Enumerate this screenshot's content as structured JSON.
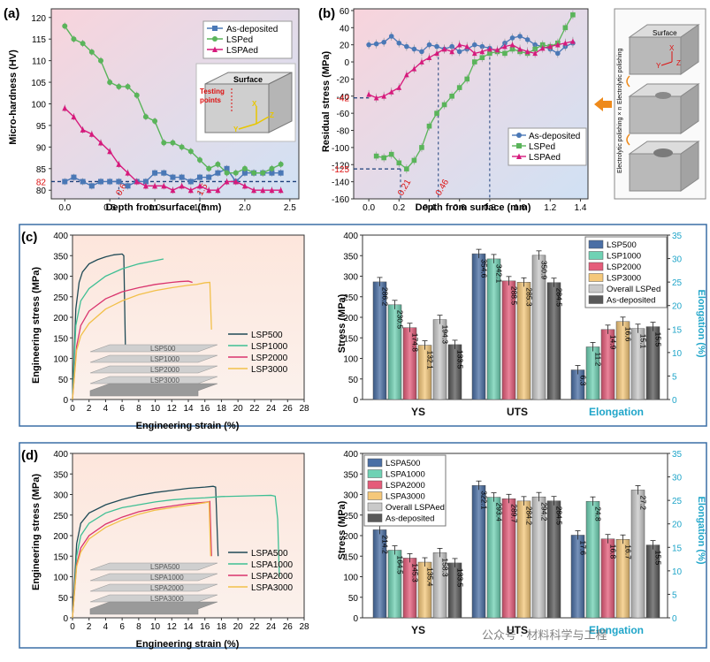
{
  "colors": {
    "blue": "#4a78b6",
    "green": "#5ab45a",
    "magenta": "#d61a7c",
    "pink_bg": "#f7d5dd",
    "blue_bg": "#d2e2f4",
    "orange": "#ee8a1b",
    "border": "#3a6ea5",
    "cyan_label": "#1fa5c9"
  },
  "panel_a": {
    "tag": "(a)",
    "xlabel": "Depth from surface (mm)",
    "ylabel": "Micro-hardness (HV)",
    "x_ticks": [
      "0.0",
      "0.5",
      "1.0",
      "1.5",
      "2.0",
      "2.5"
    ],
    "y_ticks": [
      "80",
      "85",
      "90",
      "95",
      "100",
      "105",
      "110",
      "115",
      "120"
    ],
    "ref_label": "82",
    "mark1": "0.6",
    "mark2": "1.5",
    "inset": {
      "surface": "Surface",
      "testing": "Testing",
      "points": "points",
      "x": "X",
      "y": "Y",
      "z": "Z"
    },
    "legend": [
      "As-deposited",
      "LSPed",
      "LSPAed"
    ]
  },
  "panel_b": {
    "tag": "(b)",
    "xlabel": "Depth from surface (mm)",
    "ylabel": "Residual stress (MPa)",
    "x_ticks": [
      "0.0",
      "0.2",
      "0.4",
      "0.6",
      "0.8",
      "1.0",
      "1.2",
      "1.4"
    ],
    "y_ticks": [
      "60",
      "40",
      "20",
      "0",
      "-20",
      "-40",
      "-60",
      "-80",
      "-100",
      "-120",
      "-140",
      "-160"
    ],
    "ref1": "-42",
    "ref2": "-125",
    "mark1": "0.21",
    "mark2": "0.46",
    "legend": [
      "As-deposited",
      "LSPed",
      "LSPAed"
    ],
    "side": {
      "surface": "Surface",
      "ep1": "Electrolytic polishing",
      "ep2": "Electrolytic polishing × n",
      "x": "X",
      "y": "Y",
      "z": "Z"
    }
  },
  "panel_c": {
    "tag": "(c)",
    "xlabel": "Engineering strain (%)",
    "ylabel": "Engineering stress  (MPa)",
    "x_ticks": [
      "0",
      "2",
      "4",
      "6",
      "8",
      "10",
      "12",
      "14",
      "16",
      "18",
      "20",
      "22",
      "24",
      "26",
      "28"
    ],
    "y_ticks": [
      "0",
      "50",
      "100",
      "150",
      "200",
      "250",
      "300",
      "350",
      "400"
    ],
    "legend": [
      "LSP500",
      "LSP1000",
      "LSP2000",
      "LSP3000"
    ],
    "stack": [
      "LSP500",
      "LSP1000",
      "LSP2000",
      "LSP3000"
    ],
    "bar_legend": [
      "LSP500",
      "LSP1000",
      "LSP2000",
      "LSP3000",
      "Overall LSPed",
      "As-deposited"
    ],
    "bar_ylabel": "Stress  (MPa)",
    "bar_y2label": "Elongation (%)",
    "groups": [
      "YS",
      "UTS",
      "Elongation"
    ],
    "ys": [
      "286.2",
      "230.5",
      "174.8",
      "132.1",
      "194.3",
      "133.5"
    ],
    "uts": [
      "354.6",
      "342.1",
      "288.5",
      "285.3",
      "350.9",
      "284.5"
    ],
    "el": [
      "6.3",
      "11.2",
      "14.9",
      "16.6",
      "15.1",
      "15.5"
    ]
  },
  "panel_d": {
    "tag": "(d)",
    "xlabel": "Engineering strain (%)",
    "ylabel": "Engineering stress  (MPa)",
    "x_ticks": [
      "0",
      "2",
      "4",
      "6",
      "8",
      "10",
      "12",
      "14",
      "16",
      "18",
      "20",
      "22",
      "24",
      "26",
      "28"
    ],
    "y_ticks": [
      "0",
      "50",
      "100",
      "150",
      "200",
      "250",
      "300",
      "350",
      "400"
    ],
    "legend": [
      "LSPA500",
      "LSPA1000",
      "LSPA2000",
      "LSPA3000"
    ],
    "stack": [
      "LSPA500",
      "LSPA1000",
      "LSPA2000",
      "LSPA3000"
    ],
    "bar_legend": [
      "LSPA500",
      "LSPA1000",
      "LSPA2000",
      "LSPA3000",
      "Overall LSPAed",
      "As-deposited"
    ],
    "bar_ylabel": "Stress  (MPa)",
    "bar_y2label": "Elongation (%)",
    "groups": [
      "YS",
      "UTS",
      "Elongation"
    ],
    "ys": [
      "214.2",
      "164.5",
      "145.3",
      "135.4",
      "158.3",
      "133.5"
    ],
    "uts": [
      "322.1",
      "293.4",
      "289.7",
      "284.2",
      "294.2",
      "284.5"
    ],
    "el": [
      "17.6",
      "24.8",
      "16.8",
      "16.7",
      "27.2",
      "15.5"
    ]
  },
  "watermark": "公众号 · 材料科学与工程",
  "chart_data": [
    {
      "type": "line",
      "id": "a",
      "xlim": [
        -0.15,
        2.6
      ],
      "ylim": [
        78,
        122
      ],
      "series": [
        {
          "name": "As-deposited",
          "x": [
            0,
            0.1,
            0.2,
            0.3,
            0.4,
            0.5,
            0.6,
            0.7,
            0.8,
            0.9,
            1.0,
            1.1,
            1.2,
            1.3,
            1.4,
            1.5,
            1.6,
            1.7,
            1.8,
            1.9,
            2.0,
            2.1,
            2.2,
            2.3,
            2.4
          ],
          "y": [
            82,
            83,
            82,
            81,
            82,
            82,
            82,
            81,
            82,
            82,
            84,
            84,
            83,
            83,
            82,
            83,
            83,
            84,
            85,
            82,
            84,
            84,
            84,
            84,
            84
          ]
        },
        {
          "name": "LSPed",
          "x": [
            0,
            0.1,
            0.2,
            0.3,
            0.4,
            0.5,
            0.6,
            0.7,
            0.8,
            0.9,
            1.0,
            1.1,
            1.2,
            1.3,
            1.4,
            1.5,
            1.6,
            1.7,
            1.8,
            1.9,
            2.0,
            2.1,
            2.2,
            2.3,
            2.4
          ],
          "y": [
            118,
            115,
            114,
            112,
            110,
            105,
            104,
            104,
            102,
            97,
            96,
            91,
            91,
            90,
            89,
            87,
            85,
            86,
            84,
            84,
            85,
            84,
            84,
            85,
            86
          ]
        },
        {
          "name": "LSPAed",
          "x": [
            0,
            0.1,
            0.2,
            0.3,
            0.4,
            0.5,
            0.6,
            0.7,
            0.8,
            0.9,
            1.0,
            1.1,
            1.2,
            1.3,
            1.4,
            1.5,
            1.6,
            1.7,
            1.8,
            1.9,
            2.0,
            2.1,
            2.2,
            2.3,
            2.4
          ],
          "y": [
            99,
            97,
            94,
            93,
            91,
            89,
            86,
            84,
            82,
            81,
            81,
            81,
            80,
            81,
            80,
            81,
            80,
            80,
            82,
            82,
            81,
            80,
            80,
            80,
            80
          ]
        }
      ]
    },
    {
      "type": "line",
      "id": "b",
      "xlim": [
        -0.1,
        1.45
      ],
      "ylim": [
        -160,
        62
      ],
      "series": [
        {
          "name": "As-deposited",
          "x": [
            0,
            0.05,
            0.1,
            0.15,
            0.2,
            0.25,
            0.3,
            0.35,
            0.4,
            0.45,
            0.5,
            0.55,
            0.6,
            0.65,
            0.7,
            0.75,
            0.8,
            0.85,
            0.9,
            0.95,
            1.0,
            1.05,
            1.1,
            1.15,
            1.2,
            1.25,
            1.3,
            1.35
          ],
          "y": [
            20,
            21,
            23,
            30,
            22,
            18,
            15,
            12,
            20,
            18,
            15,
            18,
            12,
            15,
            20,
            18,
            16,
            12,
            22,
            28,
            30,
            26,
            20,
            18,
            15,
            10,
            18,
            22
          ]
        },
        {
          "name": "LSPed",
          "x": [
            0.05,
            0.1,
            0.15,
            0.2,
            0.25,
            0.3,
            0.35,
            0.4,
            0.45,
            0.5,
            0.55,
            0.6,
            0.65,
            0.7,
            0.75,
            0.8,
            0.85,
            0.9,
            0.95,
            1.0,
            1.05,
            1.1,
            1.15,
            1.2,
            1.25,
            1.3,
            1.35
          ],
          "y": [
            -110,
            -112,
            -108,
            -118,
            -125,
            -115,
            -100,
            -75,
            -60,
            -50,
            -40,
            -30,
            -20,
            0,
            5,
            10,
            12,
            10,
            15,
            12,
            10,
            15,
            20,
            18,
            22,
            40,
            55
          ]
        },
        {
          "name": "LSPAed",
          "x": [
            0,
            0.05,
            0.1,
            0.15,
            0.2,
            0.25,
            0.3,
            0.35,
            0.4,
            0.45,
            0.5,
            0.55,
            0.6,
            0.65,
            0.7,
            0.75,
            0.8,
            0.85,
            0.9,
            0.95,
            1.0,
            1.05,
            1.1,
            1.15,
            1.2,
            1.25,
            1.3,
            1.35
          ],
          "y": [
            -38,
            -42,
            -40,
            -35,
            -30,
            -15,
            -8,
            0,
            5,
            10,
            15,
            12,
            20,
            18,
            10,
            12,
            15,
            14,
            18,
            20,
            15,
            12,
            10,
            16,
            18,
            20,
            22,
            24
          ]
        }
      ]
    },
    {
      "type": "line",
      "id": "c-curves",
      "xlim": [
        0,
        28
      ],
      "ylim": [
        0,
        400
      ],
      "series": [
        {
          "name": "LSP500",
          "x": [
            0,
            0.4,
            0.8,
            1.2,
            2,
            3,
            4,
            5,
            6,
            6.2,
            6.4
          ],
          "y": [
            0,
            220,
            285,
            310,
            330,
            340,
            347,
            352,
            354,
            350,
            120
          ]
        },
        {
          "name": "LSP1000",
          "x": [
            0,
            0.4,
            1,
            2,
            4,
            6,
            8,
            10,
            11
          ],
          "y": [
            0,
            180,
            240,
            270,
            300,
            318,
            330,
            338,
            342
          ]
        },
        {
          "name": "LSP2000",
          "x": [
            0,
            0.5,
            1,
            2,
            4,
            6,
            8,
            10,
            12,
            13,
            14,
            14.5
          ],
          "y": [
            0,
            130,
            180,
            215,
            245,
            262,
            272,
            280,
            285,
            287,
            288,
            285
          ]
        },
        {
          "name": "LSP3000",
          "x": [
            0,
            0.5,
            1,
            2,
            4,
            6,
            8,
            10,
            12,
            14,
            15,
            16,
            16.6,
            16.8
          ],
          "y": [
            0,
            120,
            155,
            185,
            220,
            240,
            255,
            265,
            272,
            278,
            280,
            284,
            285,
            170
          ]
        }
      ]
    },
    {
      "type": "bar",
      "id": "c-bars",
      "categories": [
        "YS",
        "UTS",
        "Elongation"
      ],
      "ylim": [
        0,
        400
      ],
      "y2lim": [
        0,
        35
      ],
      "series": [
        {
          "name": "LSP500",
          "values": [
            286.2,
            354.6,
            6.3
          ]
        },
        {
          "name": "LSP1000",
          "values": [
            230.5,
            342.1,
            11.2
          ]
        },
        {
          "name": "LSP2000",
          "values": [
            174.8,
            288.5,
            14.9
          ]
        },
        {
          "name": "LSP3000",
          "values": [
            132.1,
            285.3,
            16.6
          ]
        },
        {
          "name": "Overall LSPed",
          "values": [
            194.3,
            350.9,
            15.1
          ]
        },
        {
          "name": "As-deposited",
          "values": [
            133.5,
            284.5,
            15.5
          ]
        }
      ]
    },
    {
      "type": "line",
      "id": "d-curves",
      "xlim": [
        0,
        28
      ],
      "ylim": [
        0,
        400
      ],
      "series": [
        {
          "name": "LSPA500",
          "x": [
            0,
            0.5,
            1,
            2,
            4,
            6,
            8,
            10,
            12,
            14,
            16,
            17,
            17.3,
            17.6
          ],
          "y": [
            0,
            180,
            230,
            255,
            275,
            288,
            298,
            305,
            310,
            315,
            318,
            320,
            318,
            150
          ]
        },
        {
          "name": "LSPA1000",
          "x": [
            0,
            0.5,
            1,
            2,
            4,
            6,
            8,
            10,
            12,
            14,
            16,
            18,
            20,
            22,
            24,
            24.5,
            24.8,
            25
          ],
          "y": [
            0,
            150,
            200,
            230,
            255,
            268,
            275,
            282,
            287,
            290,
            292,
            295,
            296,
            297,
            298,
            296,
            240,
            100
          ]
        },
        {
          "name": "LSPA2000",
          "x": [
            0,
            0.5,
            1,
            2,
            4,
            6,
            8,
            10,
            12,
            14,
            16,
            16.6,
            16.8
          ],
          "y": [
            0,
            130,
            170,
            200,
            228,
            245,
            258,
            266,
            272,
            278,
            281,
            283,
            150
          ]
        },
        {
          "name": "LSPA3000",
          "x": [
            0,
            0.5,
            1,
            2,
            4,
            6,
            8,
            10,
            12,
            14,
            16,
            16.5,
            16.7
          ],
          "y": [
            0,
            125,
            160,
            192,
            220,
            238,
            252,
            262,
            268,
            274,
            280,
            282,
            150
          ]
        }
      ]
    },
    {
      "type": "bar",
      "id": "d-bars",
      "categories": [
        "YS",
        "UTS",
        "Elongation"
      ],
      "ylim": [
        0,
        400
      ],
      "y2lim": [
        0,
        35
      ],
      "series": [
        {
          "name": "LSPA500",
          "values": [
            214.2,
            322.1,
            17.6
          ]
        },
        {
          "name": "LSPA1000",
          "values": [
            164.5,
            293.4,
            24.8
          ]
        },
        {
          "name": "LSPA2000",
          "values": [
            145.3,
            289.7,
            16.8
          ]
        },
        {
          "name": "LSPA3000",
          "values": [
            135.4,
            284.2,
            16.7
          ]
        },
        {
          "name": "Overall LSPAed",
          "values": [
            158.3,
            294.2,
            27.2
          ]
        },
        {
          "name": "As-deposited",
          "values": [
            133.5,
            284.5,
            15.5
          ]
        }
      ]
    }
  ]
}
